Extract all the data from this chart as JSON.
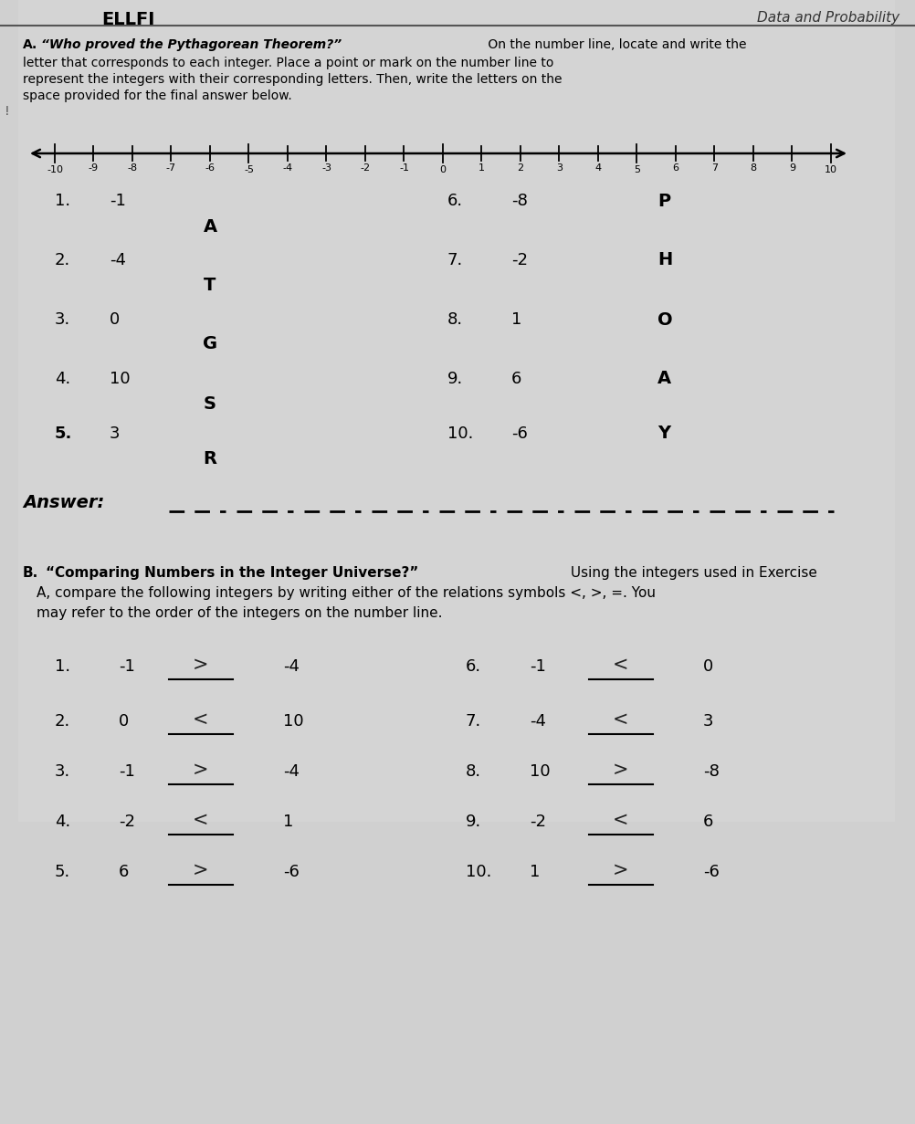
{
  "bg_color": "#c8c8c8",
  "bg_color_light": "#e0e0e0",
  "title_right": "Data and Probability",
  "title_left": "ELLFI",
  "number_line_min": -10,
  "number_line_max": 10,
  "items_left": [
    {
      "num": "1.",
      "val": "-1",
      "letter": "A"
    },
    {
      "num": "2.",
      "val": "-4",
      "letter": "T"
    },
    {
      "num": "3.",
      "val": "0",
      "letter": "G"
    },
    {
      "num": "4.",
      "val": "10",
      "letter": "S"
    },
    {
      "num": "5.",
      "val": "3",
      "letter": "R"
    }
  ],
  "items_right": [
    {
      "num": "6.",
      "val": "-8",
      "letter": "P"
    },
    {
      "num": "7.",
      "val": "-2",
      "letter": "H"
    },
    {
      "num": "8.",
      "val": "1",
      "letter": "O"
    },
    {
      "num": "9.",
      "val": "6",
      "letter": "A"
    },
    {
      "num": "10.",
      "val": "-6",
      "letter": "Y"
    }
  ],
  "answer_label": "Answer:",
  "answer_blanks": 10,
  "compare_left": [
    {
      "num": "1.",
      "a": "-1",
      "symbol": ">",
      "b": "-4"
    },
    {
      "num": "2.",
      "a": "0",
      "symbol": "<",
      "b": "10"
    },
    {
      "num": "3.",
      "a": "-1",
      "symbol": ">",
      "b": "-4"
    },
    {
      "num": "4.",
      "a": "-2",
      "symbol": "<",
      "b": "1"
    },
    {
      "num": "5.",
      "a": "6",
      "symbol": ">",
      "b": "-6"
    }
  ],
  "compare_right": [
    {
      "num": "6.",
      "a": "-1",
      "symbol": "<",
      "b": "0"
    },
    {
      "num": "7.",
      "a": "-4",
      "symbol": "<",
      "b": "3"
    },
    {
      "num": "8.",
      "a": "10",
      "symbol": ">",
      "b": "-8"
    },
    {
      "num": "9.",
      "a": "-2",
      "symbol": "<",
      "b": "6"
    },
    {
      "num": "10.",
      "a": "1",
      "symbol": ">",
      "b": "-6"
    }
  ]
}
